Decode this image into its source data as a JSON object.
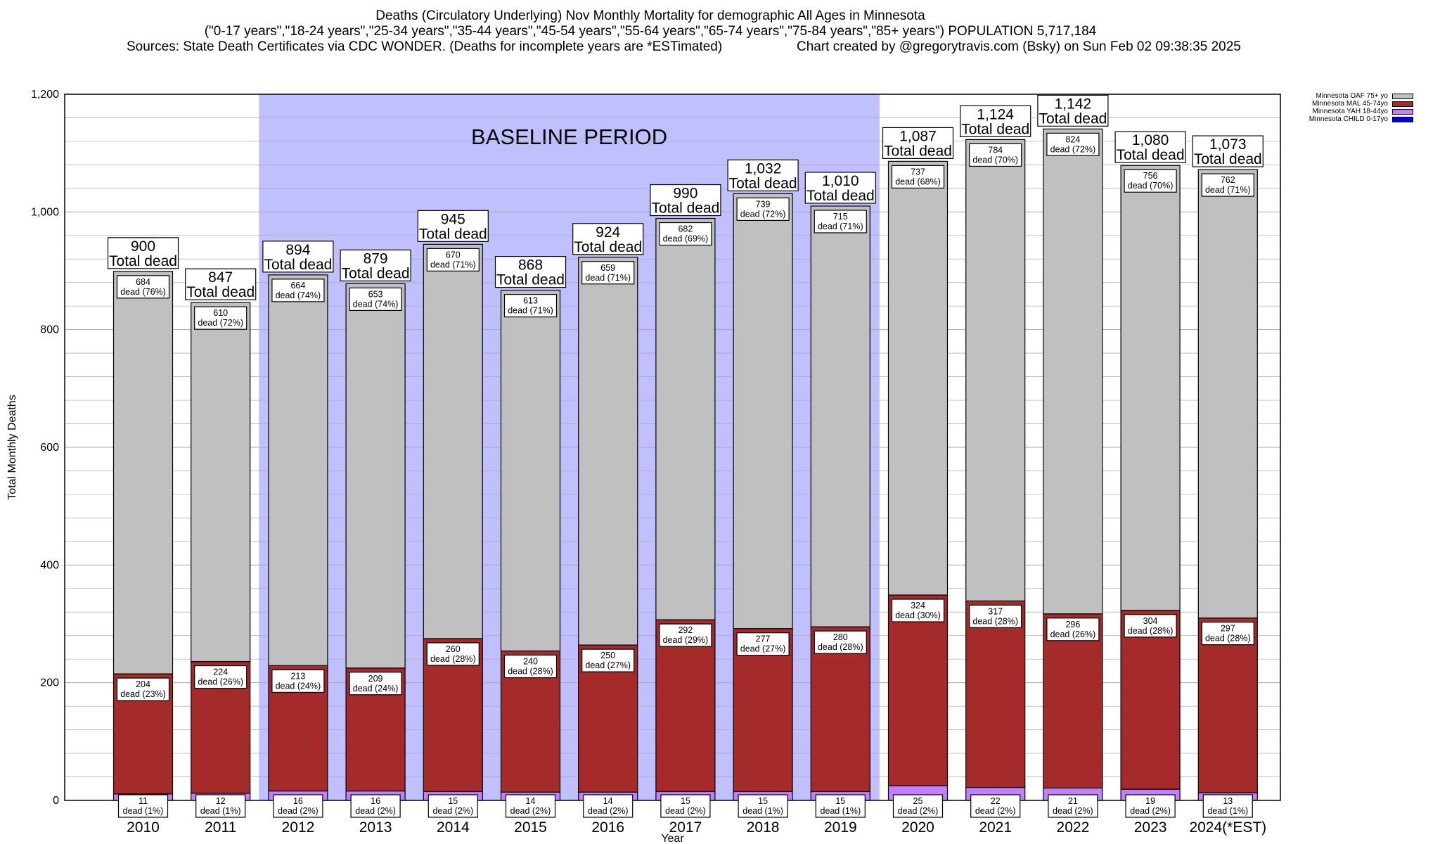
{
  "header": {
    "title": "Deaths (Circulatory Underlying) Nov Monthly Mortality for demographic All Ages in Minnesota",
    "subtitle": "(\"0-17 years\",\"18-24 years\",\"25-34 years\",\"35-44 years\",\"45-54 years\",\"55-64 years\",\"65-74 years\",\"75-84 years\",\"85+ years\") POPULATION 5,717,184",
    "sources": "Sources: State Death Certificates via CDC WONDER. (Deaths for incomplete years are *ESTimated)",
    "credit": "Chart created by @gregorytravis.com (Bsky) on Sun Feb 02 09:38:35 2025"
  },
  "legend": [
    {
      "label": "Minnesota OAF 75+ yo",
      "color": "#c0c0c0"
    },
    {
      "label": "Minnesota MAL 45-74yo",
      "color": "#a52a2a"
    },
    {
      "label": "Minnesota YAH 18-44yo",
      "color": "#c080ff"
    },
    {
      "label": "Minnesota CHILD 0-17yo",
      "color": "#0000ff"
    }
  ],
  "chart_data": {
    "type": "bar",
    "stacked": true,
    "xlabel": "Year",
    "ylabel": "Total Monthly Deaths",
    "ylim": [
      0,
      1200
    ],
    "yticks": [
      "0",
      "200",
      "400",
      "600",
      "800",
      "1,000",
      "1,200"
    ],
    "annotation": "BASELINE PERIOD",
    "baseline_range": [
      "2012",
      "2019"
    ],
    "total_suffix": "Total dead",
    "dead_word": "dead",
    "categories": [
      "2010",
      "2011",
      "2012",
      "2013",
      "2014",
      "2015",
      "2016",
      "2017",
      "2018",
      "2019",
      "2020",
      "2021",
      "2022",
      "2023",
      "2024(*EST)"
    ],
    "totals": [
      "900",
      "847",
      "894",
      "879",
      "945",
      "868",
      "924",
      "990",
      "1,032",
      "1,010",
      "1,087",
      "1,124",
      "1,142",
      "1,080",
      "1,073"
    ],
    "series": [
      {
        "name": "Minnesota YAH 18-44yo",
        "color": "#c080ff",
        "values": [
          11,
          12,
          16,
          16,
          15,
          14,
          14,
          15,
          15,
          15,
          25,
          22,
          21,
          19,
          13
        ],
        "pct": [
          1,
          1,
          2,
          2,
          2,
          2,
          2,
          2,
          1,
          1,
          2,
          2,
          2,
          2,
          1
        ]
      },
      {
        "name": "Minnesota MAL 45-74yo",
        "color": "#a52a2a",
        "values": [
          204,
          224,
          213,
          209,
          260,
          240,
          250,
          292,
          277,
          280,
          324,
          317,
          296,
          304,
          297
        ],
        "pct": [
          23,
          26,
          24,
          24,
          28,
          28,
          27,
          29,
          27,
          28,
          30,
          28,
          26,
          28,
          28
        ]
      },
      {
        "name": "Minnesota OAF 75+ yo",
        "color": "#c0c0c0",
        "values": [
          684,
          610,
          664,
          653,
          670,
          613,
          659,
          682,
          739,
          715,
          737,
          784,
          824,
          756,
          762
        ],
        "pct": [
          76,
          72,
          74,
          74,
          71,
          71,
          71,
          69,
          72,
          71,
          68,
          70,
          72,
          70,
          71
        ]
      }
    ]
  }
}
